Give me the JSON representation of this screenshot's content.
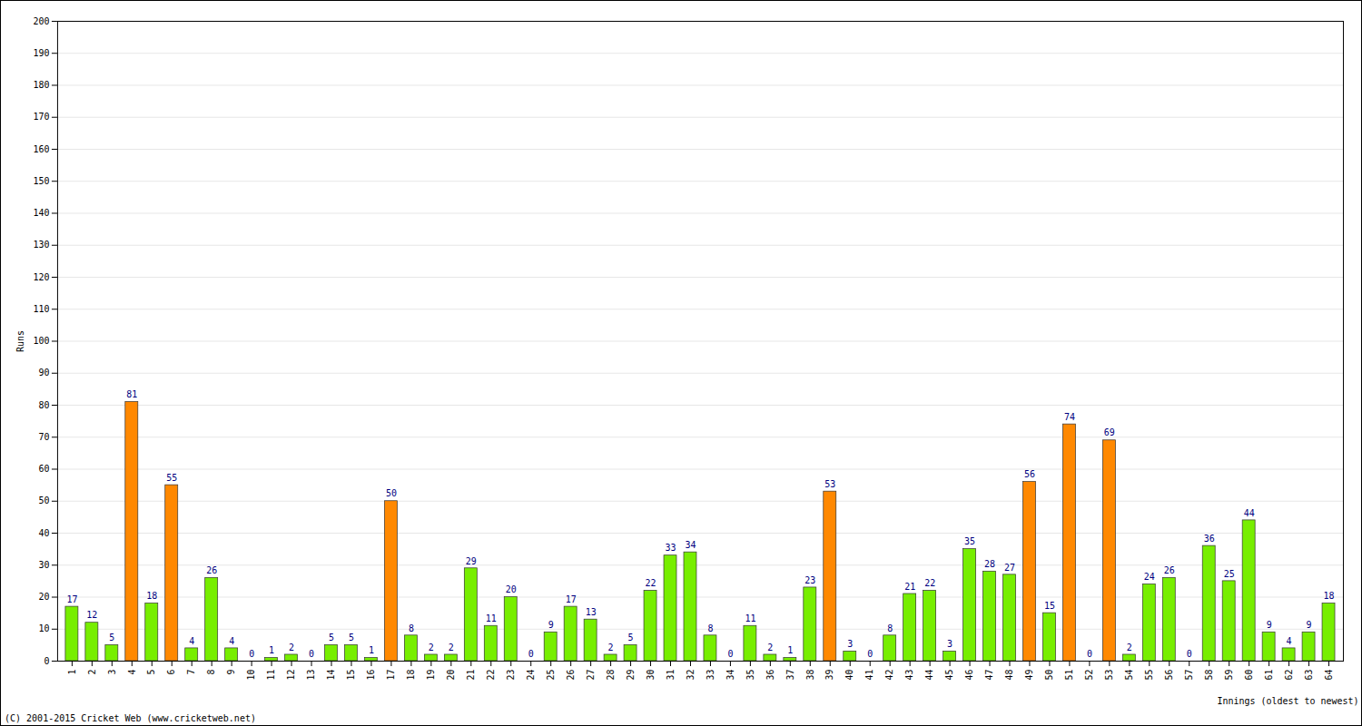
{
  "chart_data": {
    "type": "bar",
    "x_label": "Innings (oldest to newest)",
    "y_label": "Runs",
    "caption": "(C) 2001-2015 Cricket Web (www.cricketweb.net)",
    "categories": [
      "1",
      "2",
      "3",
      "4",
      "5",
      "6",
      "7",
      "8",
      "9",
      "10",
      "11",
      "12",
      "13",
      "14",
      "15",
      "16",
      "17",
      "18",
      "19",
      "20",
      "21",
      "22",
      "23",
      "24",
      "25",
      "26",
      "27",
      "28",
      "29",
      "30",
      "31",
      "32",
      "33",
      "34",
      "35",
      "36",
      "37",
      "38",
      "39",
      "40",
      "41",
      "42",
      "43",
      "44",
      "45",
      "46",
      "47",
      "48",
      "49",
      "50",
      "51",
      "52",
      "53",
      "54",
      "55",
      "56",
      "57",
      "58",
      "59",
      "60",
      "61",
      "62",
      "63",
      "64"
    ],
    "values": [
      17,
      12,
      5,
      81,
      18,
      55,
      4,
      26,
      4,
      0,
      1,
      2,
      0,
      5,
      5,
      1,
      50,
      8,
      2,
      2,
      29,
      11,
      20,
      0,
      9,
      17,
      13,
      2,
      5,
      22,
      33,
      34,
      8,
      0,
      11,
      2,
      1,
      23,
      53,
      3,
      0,
      8,
      21,
      22,
      3,
      35,
      28,
      27,
      56,
      15,
      74,
      0,
      69,
      2,
      24,
      26,
      0,
      36,
      25,
      44,
      9,
      4,
      9,
      18
    ],
    "colors": [
      "#77ee00",
      "#77ee00",
      "#77ee00",
      "#ff8800",
      "#77ee00",
      "#ff8800",
      "#77ee00",
      "#77ee00",
      "#77ee00",
      "#77ee00",
      "#77ee00",
      "#77ee00",
      "#77ee00",
      "#77ee00",
      "#77ee00",
      "#77ee00",
      "#ff8800",
      "#77ee00",
      "#77ee00",
      "#77ee00",
      "#77ee00",
      "#77ee00",
      "#77ee00",
      "#77ee00",
      "#77ee00",
      "#77ee00",
      "#77ee00",
      "#77ee00",
      "#77ee00",
      "#77ee00",
      "#77ee00",
      "#77ee00",
      "#77ee00",
      "#77ee00",
      "#77ee00",
      "#77ee00",
      "#77ee00",
      "#77ee00",
      "#ff8800",
      "#77ee00",
      "#77ee00",
      "#77ee00",
      "#77ee00",
      "#77ee00",
      "#77ee00",
      "#77ee00",
      "#77ee00",
      "#77ee00",
      "#ff8800",
      "#77ee00",
      "#ff8800",
      "#77ee00",
      "#ff8800",
      "#77ee00",
      "#77ee00",
      "#77ee00",
      "#77ee00",
      "#77ee00",
      "#77ee00",
      "#77ee00",
      "#77ee00",
      "#77ee00",
      "#77ee00",
      "#77ee00"
    ],
    "ylim": [
      0,
      200
    ],
    "yticks": [
      0,
      10,
      20,
      30,
      40,
      50,
      60,
      70,
      80,
      90,
      100,
      110,
      120,
      130,
      140,
      150,
      160,
      170,
      180,
      190,
      200
    ],
    "grid": true,
    "data_labels": true
  }
}
